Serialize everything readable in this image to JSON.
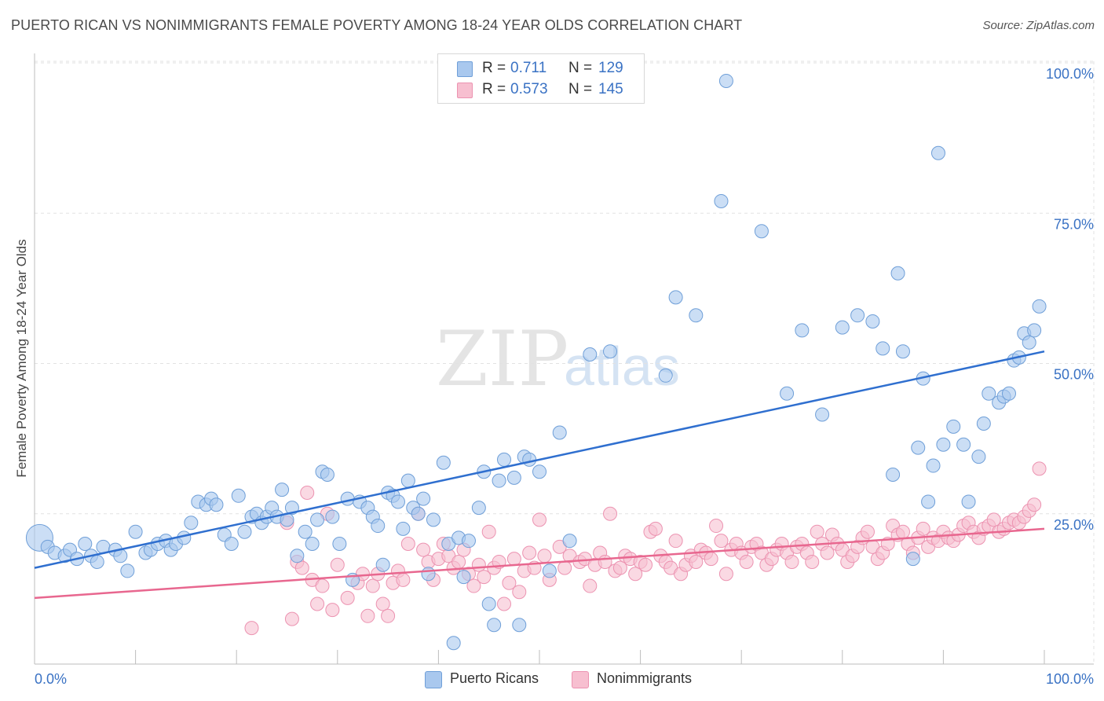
{
  "title": "PUERTO RICAN VS NONIMMIGRANTS FEMALE POVERTY AMONG 18-24 YEAR OLDS CORRELATION CHART",
  "source": "Source: ZipAtlas.com",
  "watermark": {
    "zip": "ZIP",
    "atlas": "atlas"
  },
  "colors": {
    "blue_fill": "#a9c8ee",
    "blue_stroke": "#6f9fd8",
    "blue_line": "#2f6fcf",
    "pink_fill": "#f7bfd0",
    "pink_stroke": "#ec93b1",
    "pink_line": "#e8678f",
    "axis_text": "#3a72c4",
    "grid": "#e2e2e2"
  },
  "legend": {
    "r_label": "R =",
    "n_label": "N =",
    "series": [
      {
        "r": "0.711",
        "n": "129"
      },
      {
        "r": "0.573",
        "n": "145"
      }
    ]
  },
  "chart_data": {
    "type": "scatter",
    "title": "PUERTO RICAN VS NONIMMIGRANTS FEMALE POVERTY AMONG 18-24 YEAR OLDS CORRELATION CHART",
    "xlabel": "",
    "ylabel": "Female Poverty Among 18-24 Year Olds",
    "xlim": [
      0,
      100
    ],
    "ylim": [
      0,
      100
    ],
    "x_tick_labels": [
      "0.0%",
      "100.0%"
    ],
    "y_tick_labels": [
      "25.0%",
      "50.0%",
      "75.0%",
      "100.0%"
    ],
    "y_ticks": [
      25,
      50,
      75,
      100
    ],
    "x_minor_ticks": [
      0,
      10,
      20,
      30,
      40,
      50,
      60,
      70,
      80,
      90,
      100
    ],
    "grid": true,
    "legend_position": "top-center",
    "series": [
      {
        "name": "Puerto Ricans",
        "trend": {
          "x": [
            0,
            100
          ],
          "y": [
            16,
            52
          ]
        },
        "points": [
          [
            0.5,
            21
          ],
          [
            1.3,
            19.5
          ],
          [
            2.0,
            18.5
          ],
          [
            3.0,
            18
          ],
          [
            3.5,
            19
          ],
          [
            4.2,
            17.5
          ],
          [
            5.0,
            20
          ],
          [
            5.6,
            18
          ],
          [
            6.2,
            17
          ],
          [
            6.8,
            19.5
          ],
          [
            8.0,
            19
          ],
          [
            8.5,
            18
          ],
          [
            9.2,
            15.5
          ],
          [
            10.0,
            22
          ],
          [
            11.0,
            18.5
          ],
          [
            11.5,
            19
          ],
          [
            12.2,
            20
          ],
          [
            13.0,
            20.5
          ],
          [
            13.5,
            19
          ],
          [
            14.0,
            20
          ],
          [
            14.8,
            21
          ],
          [
            15.5,
            23.5
          ],
          [
            16.2,
            27
          ],
          [
            17.0,
            26.5
          ],
          [
            17.5,
            27.5
          ],
          [
            18.0,
            26.5
          ],
          [
            18.8,
            21.5
          ],
          [
            19.5,
            20
          ],
          [
            20.2,
            28
          ],
          [
            20.8,
            22
          ],
          [
            21.5,
            24.5
          ],
          [
            22.0,
            25
          ],
          [
            22.5,
            23.5
          ],
          [
            23.0,
            24.5
          ],
          [
            23.5,
            26
          ],
          [
            24.0,
            24.5
          ],
          [
            24.5,
            29
          ],
          [
            25.0,
            24
          ],
          [
            25.5,
            26
          ],
          [
            26.0,
            18
          ],
          [
            26.8,
            22
          ],
          [
            27.5,
            20
          ],
          [
            28.0,
            24
          ],
          [
            28.5,
            32
          ],
          [
            29.0,
            31.5
          ],
          [
            29.5,
            24.5
          ],
          [
            30.2,
            20
          ],
          [
            31.0,
            27.5
          ],
          [
            31.5,
            14
          ],
          [
            32.2,
            27
          ],
          [
            33.0,
            26
          ],
          [
            33.5,
            24.5
          ],
          [
            34.0,
            23
          ],
          [
            34.5,
            16.5
          ],
          [
            35.0,
            28.5
          ],
          [
            35.5,
            28
          ],
          [
            36.0,
            27
          ],
          [
            36.5,
            22.5
          ],
          [
            37.0,
            30.5
          ],
          [
            37.5,
            26
          ],
          [
            38.0,
            25
          ],
          [
            38.5,
            27.5
          ],
          [
            39.0,
            15
          ],
          [
            39.5,
            24
          ],
          [
            40.5,
            33.5
          ],
          [
            41.0,
            20
          ],
          [
            41.5,
            3.5
          ],
          [
            42.0,
            21
          ],
          [
            42.5,
            14.5
          ],
          [
            43.0,
            20.5
          ],
          [
            44.0,
            26
          ],
          [
            44.5,
            32
          ],
          [
            45.0,
            10
          ],
          [
            45.5,
            6.5
          ],
          [
            46.0,
            30.5
          ],
          [
            46.5,
            34
          ],
          [
            47.5,
            31
          ],
          [
            48.0,
            6.5
          ],
          [
            48.5,
            34.5
          ],
          [
            49.0,
            34
          ],
          [
            50.0,
            32
          ],
          [
            51.0,
            15.5
          ],
          [
            52.0,
            38.5
          ],
          [
            53.0,
            20.5
          ],
          [
            55.0,
            51.5
          ],
          [
            57.0,
            52
          ],
          [
            62.5,
            48
          ],
          [
            63.5,
            61
          ],
          [
            65.5,
            58
          ],
          [
            68.0,
            77
          ],
          [
            68.5,
            97
          ],
          [
            72.0,
            72
          ],
          [
            74.5,
            45
          ],
          [
            76.0,
            55.5
          ],
          [
            78.0,
            41.5
          ],
          [
            80.0,
            56
          ],
          [
            81.5,
            58
          ],
          [
            83.0,
            57
          ],
          [
            84.0,
            52.5
          ],
          [
            85.0,
            31.5
          ],
          [
            85.5,
            65
          ],
          [
            86.0,
            52
          ],
          [
            87.0,
            17.5
          ],
          [
            87.5,
            36
          ],
          [
            88.0,
            47.5
          ],
          [
            88.5,
            27
          ],
          [
            89.0,
            33
          ],
          [
            89.5,
            85
          ],
          [
            90.0,
            36.5
          ],
          [
            91.0,
            39.5
          ],
          [
            92.0,
            36.5
          ],
          [
            92.5,
            27
          ],
          [
            93.5,
            34.5
          ],
          [
            94.0,
            40
          ],
          [
            94.5,
            45
          ],
          [
            95.5,
            43.5
          ],
          [
            96.0,
            44.5
          ],
          [
            96.5,
            45
          ],
          [
            97.0,
            50.5
          ],
          [
            97.5,
            51
          ],
          [
            98.0,
            55
          ],
          [
            98.5,
            53.5
          ],
          [
            99.0,
            55.5
          ],
          [
            99.5,
            59.5
          ]
        ]
      },
      {
        "name": "Nonimmigrants",
        "trend": {
          "x": [
            0,
            100
          ],
          "y": [
            11,
            22.5
          ]
        },
        "points": [
          [
            21.5,
            6
          ],
          [
            25.0,
            23.5
          ],
          [
            25.5,
            7.5
          ],
          [
            26.0,
            17
          ],
          [
            26.5,
            16
          ],
          [
            27.0,
            28.5
          ],
          [
            27.5,
            14
          ],
          [
            28.0,
            10
          ],
          [
            28.5,
            13
          ],
          [
            29.0,
            25
          ],
          [
            29.5,
            9
          ],
          [
            30.0,
            16.5
          ],
          [
            31.0,
            11
          ],
          [
            32.0,
            13.5
          ],
          [
            32.5,
            15
          ],
          [
            33.0,
            8
          ],
          [
            33.5,
            13
          ],
          [
            34.0,
            15
          ],
          [
            34.5,
            10
          ],
          [
            35.0,
            8
          ],
          [
            35.5,
            13.5
          ],
          [
            36.0,
            15.5
          ],
          [
            36.5,
            14
          ],
          [
            37.0,
            20
          ],
          [
            38.0,
            25
          ],
          [
            38.5,
            19
          ],
          [
            39.0,
            17
          ],
          [
            39.5,
            14
          ],
          [
            40.0,
            17.5
          ],
          [
            40.5,
            20
          ],
          [
            41.0,
            18
          ],
          [
            41.5,
            16
          ],
          [
            42.0,
            17
          ],
          [
            42.5,
            19
          ],
          [
            43.0,
            15
          ],
          [
            43.5,
            13
          ],
          [
            44.0,
            16.5
          ],
          [
            44.5,
            14.5
          ],
          [
            45.0,
            22
          ],
          [
            45.5,
            16
          ],
          [
            46.0,
            17
          ],
          [
            46.5,
            10
          ],
          [
            47.0,
            13.5
          ],
          [
            47.5,
            17.5
          ],
          [
            48.0,
            12
          ],
          [
            48.5,
            15.5
          ],
          [
            49.0,
            18.5
          ],
          [
            49.5,
            16
          ],
          [
            50.0,
            24
          ],
          [
            50.5,
            18
          ],
          [
            51.0,
            14
          ],
          [
            52.0,
            19.5
          ],
          [
            52.5,
            16
          ],
          [
            53.0,
            18
          ],
          [
            54.0,
            17
          ],
          [
            54.5,
            17.5
          ],
          [
            55.0,
            13
          ],
          [
            55.5,
            16.5
          ],
          [
            56.0,
            18.5
          ],
          [
            56.5,
            17
          ],
          [
            57.0,
            25
          ],
          [
            57.5,
            15.5
          ],
          [
            58.0,
            16
          ],
          [
            58.5,
            18
          ],
          [
            59.0,
            17.5
          ],
          [
            59.5,
            15
          ],
          [
            60.0,
            17
          ],
          [
            60.5,
            16.5
          ],
          [
            61.0,
            22
          ],
          [
            61.5,
            22.5
          ],
          [
            62.0,
            18
          ],
          [
            62.5,
            17
          ],
          [
            63.0,
            16
          ],
          [
            63.5,
            20.5
          ],
          [
            64.0,
            15
          ],
          [
            64.5,
            16.5
          ],
          [
            65.0,
            18
          ],
          [
            65.5,
            17
          ],
          [
            66.0,
            19
          ],
          [
            66.5,
            18.5
          ],
          [
            67.0,
            17.5
          ],
          [
            67.5,
            23
          ],
          [
            68.0,
            20.5
          ],
          [
            68.5,
            15
          ],
          [
            69.0,
            19
          ],
          [
            69.5,
            20
          ],
          [
            70.0,
            18.5
          ],
          [
            70.5,
            17
          ],
          [
            71.0,
            19.5
          ],
          [
            71.5,
            20
          ],
          [
            72.0,
            18.5
          ],
          [
            72.5,
            16.5
          ],
          [
            73.0,
            17.5
          ],
          [
            73.5,
            19
          ],
          [
            74.0,
            20
          ],
          [
            74.5,
            18.5
          ],
          [
            75.0,
            17
          ],
          [
            75.5,
            19.5
          ],
          [
            76.0,
            20
          ],
          [
            76.5,
            18.5
          ],
          [
            77.0,
            17
          ],
          [
            77.5,
            22
          ],
          [
            78.0,
            20
          ],
          [
            78.5,
            18.5
          ],
          [
            79.0,
            21.5
          ],
          [
            79.5,
            20
          ],
          [
            80.0,
            19
          ],
          [
            80.5,
            17
          ],
          [
            81.0,
            18
          ],
          [
            81.5,
            19.5
          ],
          [
            82.0,
            21
          ],
          [
            82.5,
            22
          ],
          [
            83.0,
            19.5
          ],
          [
            83.5,
            17.5
          ],
          [
            84.0,
            18.5
          ],
          [
            84.5,
            20
          ],
          [
            85.0,
            23
          ],
          [
            85.5,
            21.5
          ],
          [
            86.0,
            22
          ],
          [
            86.5,
            20
          ],
          [
            87.0,
            18.5
          ],
          [
            87.5,
            21
          ],
          [
            88.0,
            22.5
          ],
          [
            88.5,
            19.5
          ],
          [
            89.0,
            21
          ],
          [
            89.5,
            20.5
          ],
          [
            90.0,
            22
          ],
          [
            90.5,
            21
          ],
          [
            91.0,
            20.5
          ],
          [
            91.5,
            21.5
          ],
          [
            92.0,
            23
          ],
          [
            92.5,
            23.5
          ],
          [
            93.0,
            22
          ],
          [
            93.5,
            21
          ],
          [
            94.0,
            22.5
          ],
          [
            94.5,
            23
          ],
          [
            95.0,
            24
          ],
          [
            95.5,
            22
          ],
          [
            96.0,
            22.5
          ],
          [
            96.5,
            23.5
          ],
          [
            97.0,
            24
          ],
          [
            97.5,
            23.5
          ],
          [
            98.0,
            24.5
          ],
          [
            98.5,
            25.5
          ],
          [
            99.0,
            26.5
          ],
          [
            99.5,
            32.5
          ]
        ]
      }
    ]
  }
}
